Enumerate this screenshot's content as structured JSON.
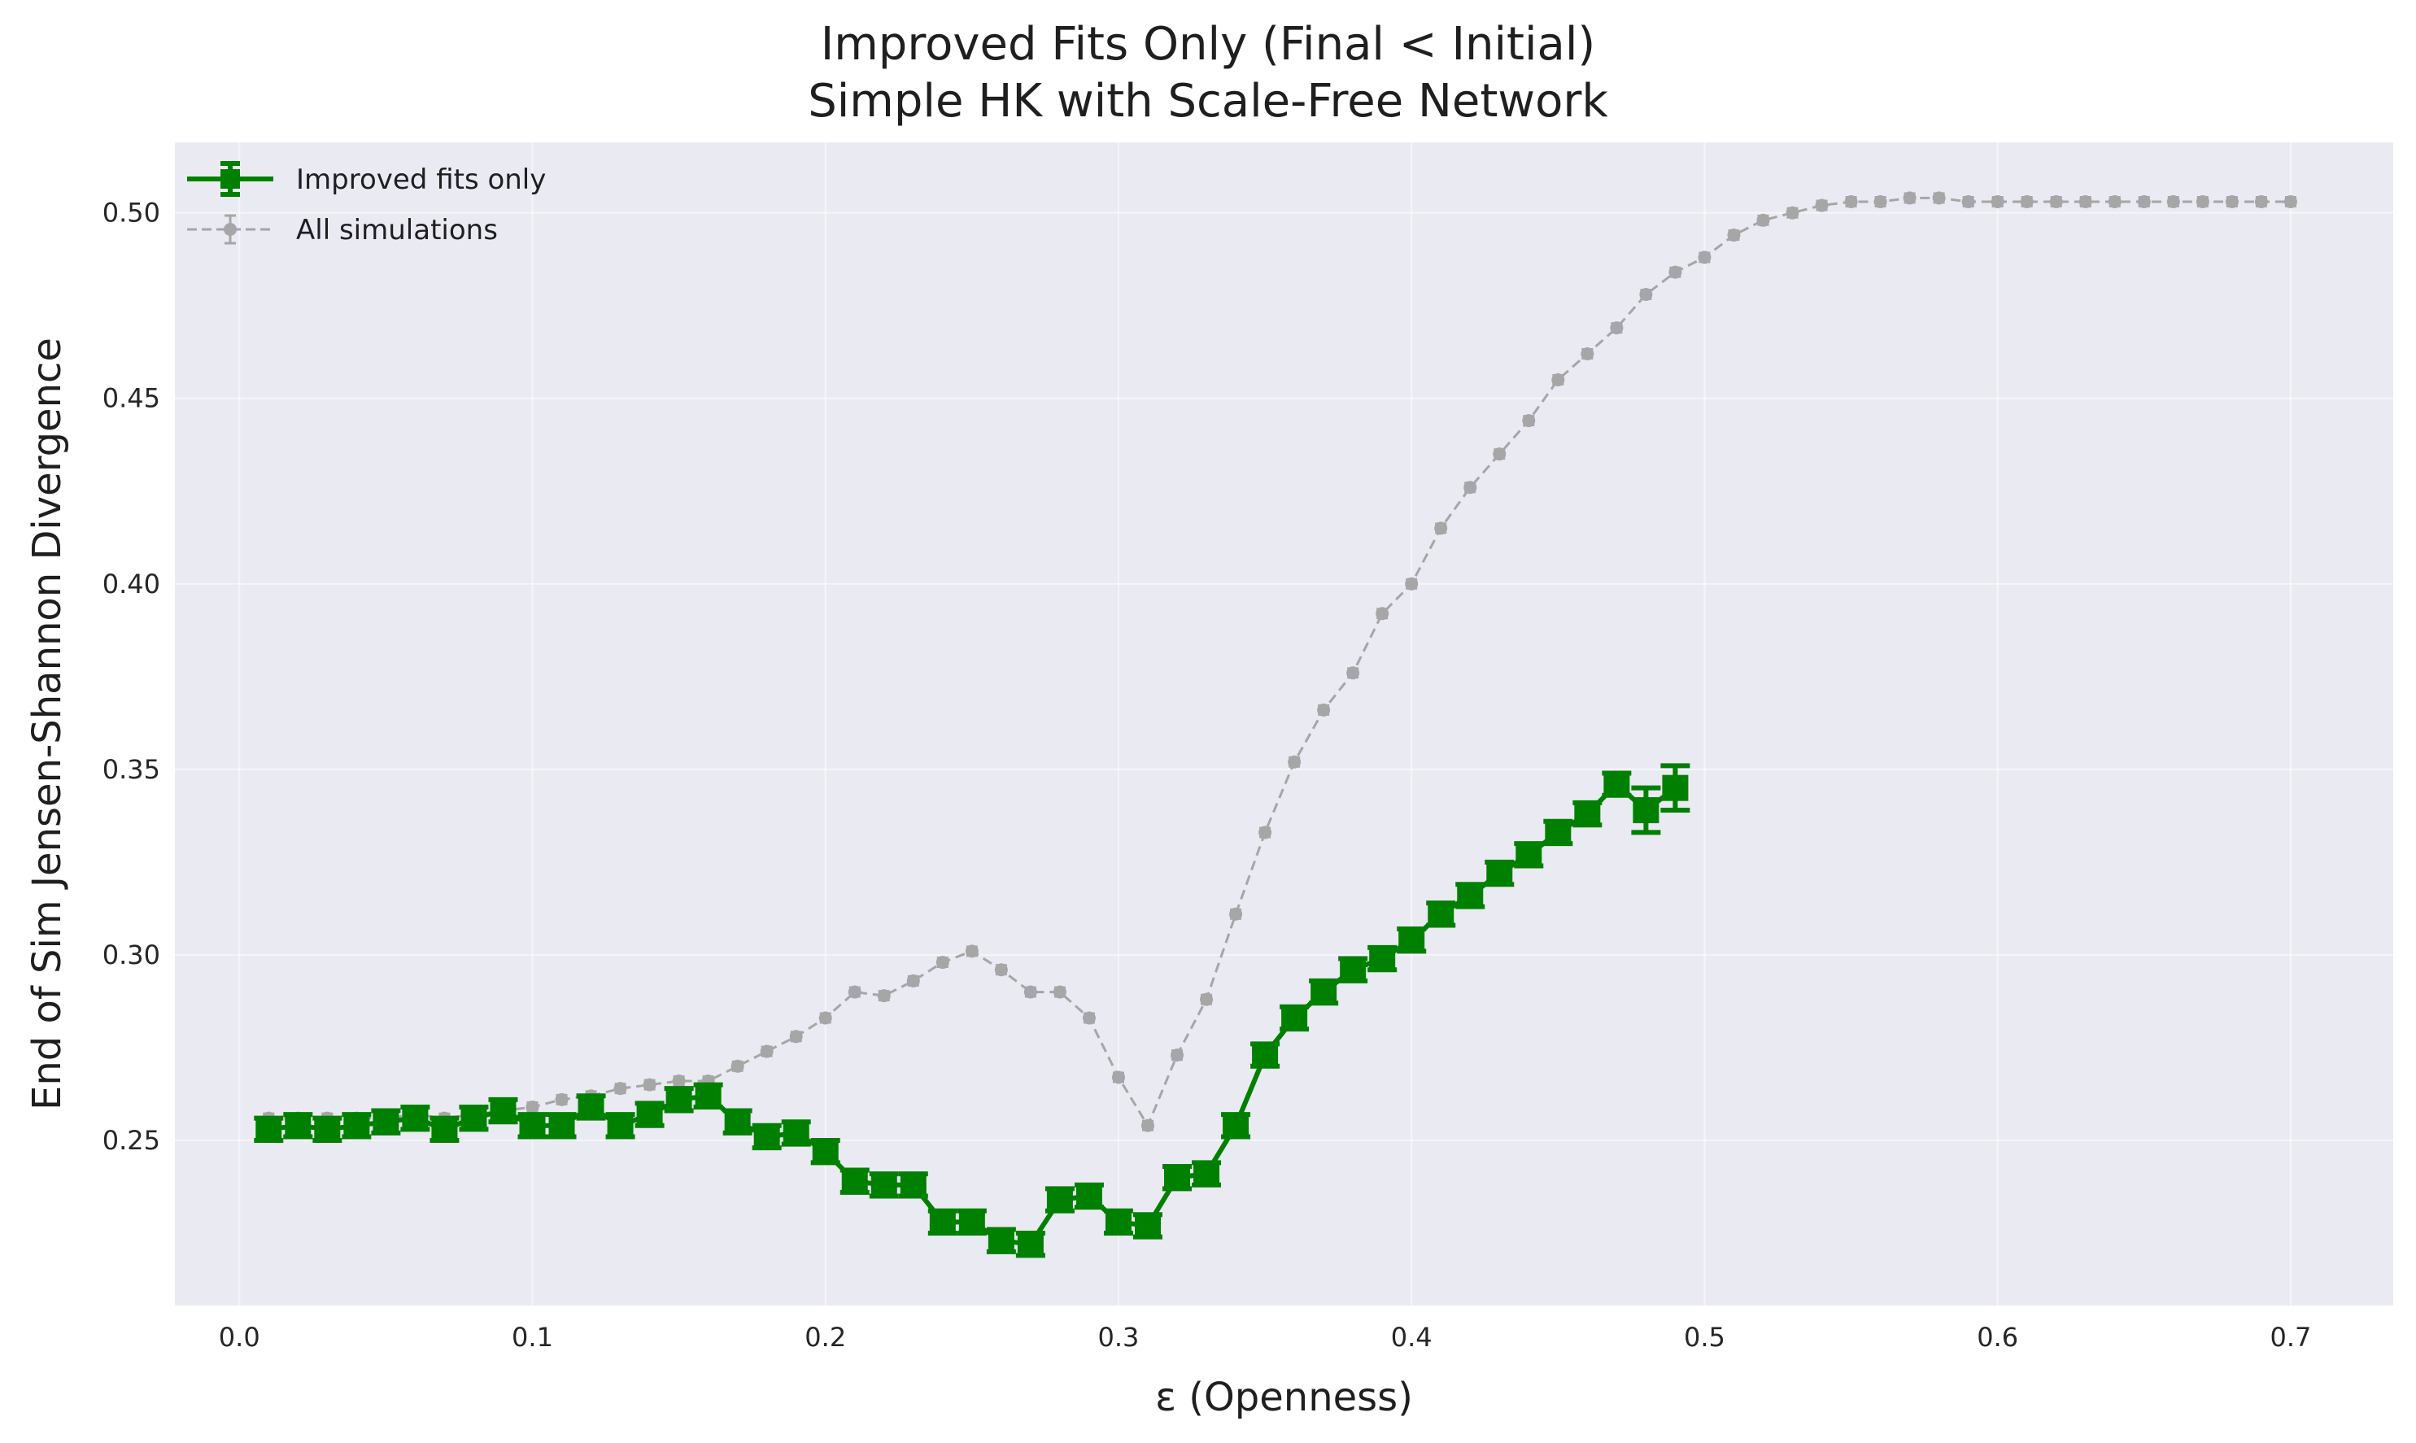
{
  "title_lines": [
    "Improved Fits Only (Final < Initial)",
    "Simple HK with Scale-Free Network"
  ],
  "colors": {
    "background": "#eaeaf2",
    "grid": "#ffffff",
    "improved": "#008000",
    "all": "#a6a6a6"
  },
  "chart_data": {
    "type": "line",
    "title": "Improved Fits Only (Final < Initial)\nSimple HK with Scale-Free Network",
    "xlabel": "ε (Openness)",
    "ylabel": "End of Sim Jensen-Shannon Divergence",
    "xlim": [
      -0.022,
      0.735
    ],
    "ylim": [
      0.2055,
      0.519
    ],
    "xticks": [
      0.0,
      0.1,
      0.2,
      0.3,
      0.4,
      0.5,
      0.6,
      0.7
    ],
    "xtick_labels": [
      "0.0",
      "0.1",
      "0.2",
      "0.3",
      "0.4",
      "0.5",
      "0.6",
      "0.7"
    ],
    "yticks": [
      0.25,
      0.3,
      0.35,
      0.4,
      0.45,
      0.5
    ],
    "ytick_labels": [
      "0.25",
      "0.30",
      "0.35",
      "0.40",
      "0.45",
      "0.50"
    ],
    "grid": true,
    "legend_position": "top-left",
    "series": [
      {
        "name": "Improved fits only",
        "color": "#008000",
        "style": "solid",
        "marker": "square",
        "x": [
          0.01,
          0.02,
          0.03,
          0.04,
          0.05,
          0.06,
          0.07,
          0.08,
          0.09,
          0.1,
          0.11,
          0.12,
          0.13,
          0.14,
          0.15,
          0.16,
          0.17,
          0.18,
          0.19,
          0.2,
          0.21,
          0.22,
          0.23,
          0.24,
          0.25,
          0.26,
          0.27,
          0.28,
          0.29,
          0.3,
          0.31,
          0.32,
          0.33,
          0.34,
          0.35,
          0.36,
          0.37,
          0.38,
          0.39,
          0.4,
          0.41,
          0.42,
          0.43,
          0.44,
          0.45,
          0.46,
          0.47,
          0.48,
          0.49
        ],
        "y": [
          0.253,
          0.254,
          0.253,
          0.254,
          0.255,
          0.256,
          0.253,
          0.256,
          0.258,
          0.254,
          0.254,
          0.259,
          0.254,
          0.257,
          0.261,
          0.262,
          0.255,
          0.251,
          0.252,
          0.247,
          0.239,
          0.238,
          0.238,
          0.228,
          0.228,
          0.223,
          0.222,
          0.234,
          0.235,
          0.228,
          0.227,
          0.24,
          0.241,
          0.254,
          0.273,
          0.283,
          0.29,
          0.296,
          0.299,
          0.304,
          0.311,
          0.316,
          0.322,
          0.327,
          0.333,
          0.338,
          0.346,
          0.339,
          0.345
        ],
        "err": [
          0.003,
          0.003,
          0.003,
          0.003,
          0.003,
          0.003,
          0.003,
          0.003,
          0.003,
          0.003,
          0.003,
          0.003,
          0.003,
          0.003,
          0.003,
          0.003,
          0.003,
          0.003,
          0.003,
          0.003,
          0.003,
          0.003,
          0.003,
          0.003,
          0.003,
          0.003,
          0.003,
          0.003,
          0.003,
          0.003,
          0.003,
          0.003,
          0.003,
          0.003,
          0.003,
          0.003,
          0.003,
          0.003,
          0.003,
          0.003,
          0.003,
          0.003,
          0.003,
          0.003,
          0.003,
          0.003,
          0.003,
          0.006,
          0.006
        ]
      },
      {
        "name": "All simulations",
        "color": "#a6a6a6",
        "style": "dashed",
        "marker": "circle",
        "x": [
          0.01,
          0.02,
          0.03,
          0.04,
          0.05,
          0.06,
          0.07,
          0.08,
          0.09,
          0.1,
          0.11,
          0.12,
          0.13,
          0.14,
          0.15,
          0.16,
          0.17,
          0.18,
          0.19,
          0.2,
          0.21,
          0.22,
          0.23,
          0.24,
          0.25,
          0.26,
          0.27,
          0.28,
          0.29,
          0.3,
          0.31,
          0.32,
          0.33,
          0.34,
          0.35,
          0.36,
          0.37,
          0.38,
          0.39,
          0.4,
          0.41,
          0.42,
          0.43,
          0.44,
          0.45,
          0.46,
          0.47,
          0.48,
          0.49,
          0.5,
          0.51,
          0.52,
          0.53,
          0.54,
          0.55,
          0.56,
          0.57,
          0.58,
          0.59,
          0.6,
          0.61,
          0.62,
          0.63,
          0.64,
          0.65,
          0.66,
          0.67,
          0.68,
          0.69,
          0.7
        ],
        "y": [
          0.256,
          0.256,
          0.256,
          0.256,
          0.256,
          0.257,
          0.256,
          0.257,
          0.258,
          0.259,
          0.261,
          0.262,
          0.264,
          0.265,
          0.266,
          0.266,
          0.27,
          0.274,
          0.278,
          0.283,
          0.29,
          0.289,
          0.293,
          0.298,
          0.301,
          0.296,
          0.29,
          0.29,
          0.283,
          0.267,
          0.254,
          0.273,
          0.288,
          0.311,
          0.333,
          0.352,
          0.366,
          0.376,
          0.392,
          0.4,
          0.415,
          0.426,
          0.435,
          0.444,
          0.455,
          0.462,
          0.469,
          0.478,
          0.484,
          0.488,
          0.494,
          0.498,
          0.5,
          0.502,
          0.503,
          0.503,
          0.504,
          0.504,
          0.503,
          0.503,
          0.503,
          0.503,
          0.503,
          0.503,
          0.503,
          0.503,
          0.503,
          0.503,
          0.503,
          0.503
        ],
        "err": [
          0.0012,
          0.0012,
          0.0012,
          0.0012,
          0.0012,
          0.0012,
          0.0012,
          0.0012,
          0.0012,
          0.0012,
          0.0012,
          0.0012,
          0.0012,
          0.0012,
          0.0012,
          0.0012,
          0.0012,
          0.0012,
          0.0012,
          0.0012,
          0.0012,
          0.0012,
          0.0012,
          0.0012,
          0.0012,
          0.0012,
          0.0012,
          0.0012,
          0.0012,
          0.0012,
          0.0012,
          0.0012,
          0.0012,
          0.0012,
          0.0012,
          0.0012,
          0.0012,
          0.0012,
          0.0012,
          0.0012,
          0.0012,
          0.0012,
          0.0012,
          0.0012,
          0.0012,
          0.0012,
          0.0012,
          0.0012,
          0.0012,
          0.0012,
          0.0012,
          0.0012,
          0.0012,
          0.0012,
          0.0012,
          0.0012,
          0.0012,
          0.0012,
          0.0012,
          0.0012,
          0.0012,
          0.0012,
          0.0012,
          0.0012,
          0.0012,
          0.0012,
          0.0012,
          0.0012,
          0.0012,
          0.0012
        ]
      }
    ]
  }
}
